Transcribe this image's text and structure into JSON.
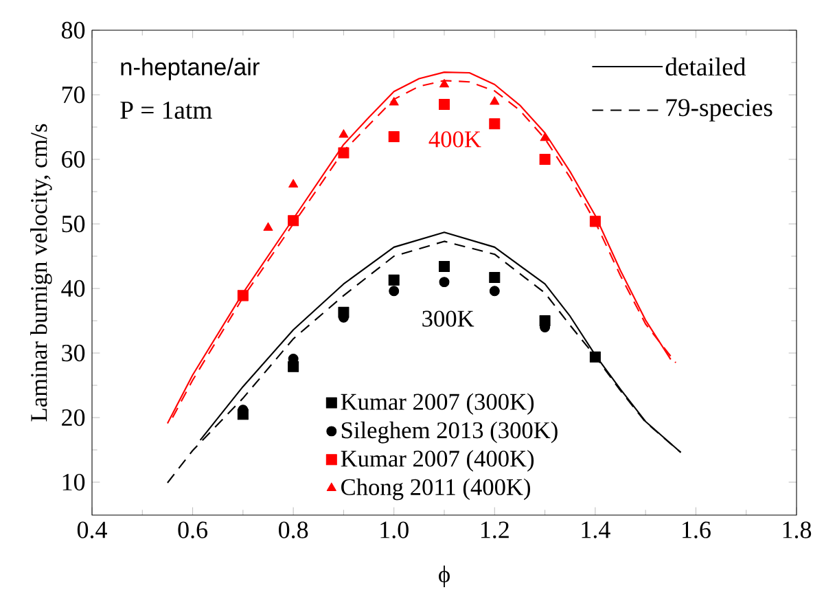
{
  "chart_data": {
    "type": "line",
    "xlabel": "ϕ",
    "ylabel": "Laminar burnign velocity, cm/s",
    "xlim": [
      0.4,
      1.8
    ],
    "ylim": [
      4.9,
      80
    ],
    "xticks": [
      0.4,
      0.6,
      0.8,
      {
        "value": 1.0,
        "label": "1.0"
      },
      1.2,
      1.4,
      1.6,
      1.8
    ],
    "yticks": [
      10,
      20,
      30,
      40,
      50,
      60,
      70,
      80
    ],
    "legend": "bottom",
    "grid": false,
    "annotations": [
      "n-heptane/air",
      "P = 1atm",
      "400K",
      "300K"
    ],
    "series": [
      {
        "name": "detailed",
        "color": "#000000",
        "marker": "none",
        "line_style": "solid",
        "x": [
          0.615,
          0.7,
          0.8,
          0.9,
          1.0,
          1.1,
          1.2,
          1.3,
          1.35,
          1.4,
          1.45,
          1.5,
          1.57
        ],
        "values": [
          16.5,
          24.8,
          33.6,
          40.7,
          46.4,
          48.7,
          46.4,
          40.7,
          35.7,
          29.7,
          24.4,
          19.4,
          14.6
        ]
      },
      {
        "name": "79-species",
        "color": "#000000",
        "marker": "none",
        "line_style": "dashed",
        "x": [
          0.55,
          0.6,
          0.7,
          0.8,
          0.9,
          1.0,
          1.1,
          1.2,
          1.3,
          1.35,
          1.4,
          1.45,
          1.5,
          1.57
        ],
        "values": [
          9.9,
          14.9,
          23,
          32.2,
          38.9,
          45,
          47.3,
          45.3,
          39.3,
          34.3,
          29.5,
          24.2,
          19.3,
          14.6
        ]
      },
      {
        "color": "#ff0000",
        "marker": "none",
        "line_style": "solid",
        "x": [
          0.55,
          0.6,
          0.7,
          0.8,
          0.9,
          0.95,
          1.0,
          1.05,
          1.1,
          1.15,
          1.2,
          1.25,
          1.3,
          1.35,
          1.4,
          1.45,
          1.5,
          1.55
        ],
        "values": [
          19.1,
          26.6,
          39.3,
          50.8,
          62.3,
          66.5,
          70.5,
          72.5,
          73.5,
          73.4,
          71.6,
          68.4,
          64.1,
          58.1,
          51.3,
          42.8,
          35.1,
          29.0
        ]
      },
      {
        "color": "#ff0000",
        "marker": "none",
        "line_style": "dashed",
        "x": [
          0.56,
          0.6,
          0.7,
          0.8,
          0.9,
          1.0,
          1.05,
          1.1,
          1.15,
          1.2,
          1.25,
          1.3,
          1.35,
          1.4,
          1.45,
          1.5,
          1.56
        ],
        "values": [
          20,
          25.8,
          38.6,
          50,
          61.3,
          69.3,
          71.3,
          72.2,
          72.0,
          70.6,
          67.6,
          63.2,
          57.2,
          50.3,
          42,
          34.5,
          28.5
        ]
      },
      {
        "type": "scatter",
        "name": "Kumar 2007 (300K)",
        "color": "#000000",
        "marker": "square",
        "x": [
          0.7,
          0.8,
          0.9,
          1.0,
          1.1,
          1.2,
          1.3,
          1.4
        ],
        "values": [
          20.5,
          27.9,
          36.3,
          41.3,
          43.4,
          41.7,
          35.0,
          29.4
        ]
      },
      {
        "type": "scatter",
        "name": "Sileghem 2013 (300K)",
        "color": "#000000",
        "marker": "circle",
        "x": [
          0.7,
          0.8,
          0.9,
          1.0,
          1.1,
          1.2,
          1.3
        ],
        "values": [
          21.2,
          29.1,
          35.5,
          39.6,
          41.0,
          39.6,
          34.0
        ]
      },
      {
        "type": "scatter",
        "name": "Kumar 2007 (400K)",
        "color": "#ff0000",
        "marker": "square",
        "x": [
          0.7,
          0.8,
          0.9,
          1.0,
          1.1,
          1.2,
          1.3,
          1.4
        ],
        "values": [
          38.9,
          50.5,
          61.0,
          63.5,
          68.5,
          65.5,
          60.0,
          50.4
        ]
      },
      {
        "type": "scatter",
        "name": "Chong 2011 (400K)",
        "color": "#ff0000",
        "marker": "triangle",
        "x": [
          0.75,
          0.8,
          0.9,
          1.0,
          1.1,
          1.2,
          1.3,
          1.4
        ],
        "values": [
          49.4,
          56.1,
          63.8,
          68.8,
          71.6,
          68.9,
          63.3,
          50.0
        ]
      }
    ]
  }
}
